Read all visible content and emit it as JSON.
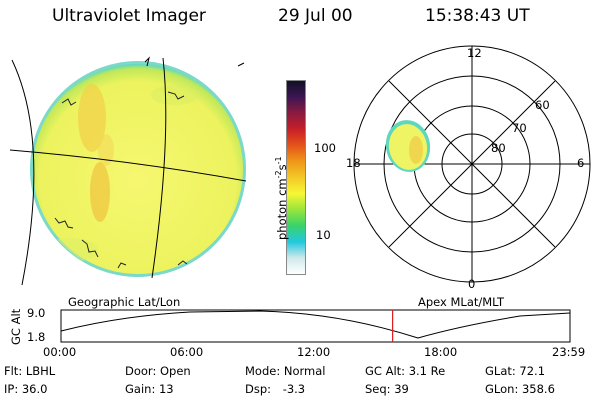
{
  "header": {
    "title": "Ultraviolet Imager",
    "date": "29 Jul 00",
    "time": "15:38:43 UT"
  },
  "colorbar": {
    "unit_label": "photon cm-2s-1",
    "ticks": [
      "100",
      "10"
    ],
    "stops": [
      "#ffffff",
      "#cfe9ea",
      "#22c8e0",
      "#39d36a",
      "#98e53c",
      "#f7f735",
      "#f3c926",
      "#f09718",
      "#e4531a",
      "#c81f28",
      "#8a1a3f",
      "#3d1655",
      "#111026"
    ]
  },
  "globe_image": {
    "caption": "Geographic Lat/Lon"
  },
  "polar_plot": {
    "caption": "Apex MLat/MLT",
    "mlt_labels": [
      "12",
      "18",
      "6",
      "0"
    ],
    "lat_labels": [
      "60",
      "70",
      "80"
    ]
  },
  "altitude_timeline": {
    "ylabel": "GC Alt",
    "y_ticks": [
      "9.0",
      "1.8"
    ],
    "x_ticks": [
      "00:00",
      "06:00",
      "12:00",
      "18:00",
      "23:59"
    ],
    "current_time_fraction": 0.6515
  },
  "footer": {
    "row1": [
      {
        "label": "Flt:",
        "value": "LBHL"
      },
      {
        "label": "Door:",
        "value": "Open"
      },
      {
        "label": "Mode:",
        "value": "Normal"
      },
      {
        "label": "GC Alt:",
        "value": "3.1 Re"
      },
      {
        "label": "GLat:",
        "value": "72.1"
      }
    ],
    "row2": [
      {
        "label": "IP:",
        "value": "36.0"
      },
      {
        "label": "Gain:",
        "value": "13"
      },
      {
        "label": "Dsp:",
        "value": "-3.3"
      },
      {
        "label": "Seq:",
        "value": "39"
      },
      {
        "label": "GLon:",
        "value": "358.6"
      }
    ]
  },
  "colors": {
    "cursor": "#e02020",
    "earth_base": "#f3f56a",
    "earth_edge": "#57d8c0"
  }
}
